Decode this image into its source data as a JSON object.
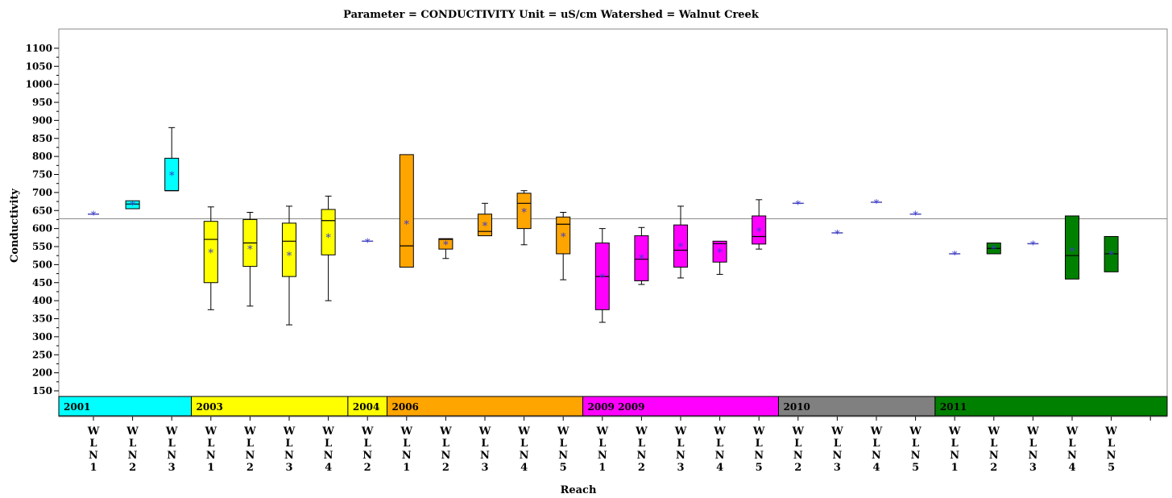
{
  "chart_data": {
    "type": "box",
    "title": "Parameter = CONDUCTIVITY  Unit = uS/cm  Watershed = Walnut  Creek",
    "xlabel": "Reach",
    "ylabel": "Conductivity",
    "ylim": [
      130,
      1130
    ],
    "yticks": [
      150,
      200,
      250,
      300,
      350,
      400,
      450,
      500,
      550,
      600,
      650,
      700,
      750,
      800,
      850,
      900,
      950,
      1000,
      1050,
      1100
    ],
    "reference_line": 627,
    "grid": false,
    "year_groups": [
      {
        "label": "2001",
        "first": 0,
        "last": 2,
        "color": "#00ffff"
      },
      {
        "label": "2003",
        "first": 3,
        "last": 6,
        "color": "#ffff00"
      },
      {
        "label": "2004",
        "first": 7,
        "last": 7,
        "color": "#ffff00"
      },
      {
        "label": "2006",
        "first": 8,
        "last": 12,
        "color": "#ffa500"
      },
      {
        "label": "2009  2009",
        "first": 13,
        "last": 17,
        "color": "#ff00ff"
      },
      {
        "label": "2010",
        "first": 18,
        "last": 21,
        "color": "#808080"
      },
      {
        "label": "2011",
        "first": 22,
        "last": 26,
        "color": "#008000"
      }
    ],
    "boxes": [
      {
        "reach": "WLN1",
        "year": "2001",
        "min": 640,
        "q1": 640,
        "median": 640,
        "q3": 640,
        "max": 640,
        "mean": 640
      },
      {
        "reach": "WLN2",
        "year": "2001",
        "min": 655,
        "q1": 655,
        "median": 668,
        "q3": 677,
        "max": 677,
        "mean": 667
      },
      {
        "reach": "WLN3",
        "year": "2001",
        "min": 705,
        "q1": 705,
        "median": 705,
        "q3": 795,
        "max": 880,
        "mean": 750
      },
      {
        "reach": "WLN1",
        "year": "2003",
        "min": 375,
        "q1": 450,
        "median": 570,
        "q3": 620,
        "max": 660,
        "mean": 535
      },
      {
        "reach": "WLN2",
        "year": "2003",
        "min": 385,
        "q1": 495,
        "median": 560,
        "q3": 625,
        "max": 645,
        "mean": 545
      },
      {
        "reach": "WLN3",
        "year": "2003",
        "min": 333,
        "q1": 467,
        "median": 565,
        "q3": 615,
        "max": 662,
        "mean": 528
      },
      {
        "reach": "WLN4",
        "year": "2003",
        "min": 400,
        "q1": 527,
        "median": 622,
        "q3": 653,
        "max": 690,
        "mean": 578
      },
      {
        "reach": "WLN2",
        "year": "2004",
        "min": 565,
        "q1": 565,
        "median": 565,
        "q3": 565,
        "max": 565,
        "mean": 565
      },
      {
        "reach": "WLN1",
        "year": "2006",
        "min": 493,
        "q1": 493,
        "median": 552,
        "q3": 805,
        "max": 805,
        "mean": 615
      },
      {
        "reach": "WLN2",
        "year": "2006",
        "min": 517,
        "q1": 543,
        "median": 570,
        "q3": 572,
        "max": 572,
        "mean": 558
      },
      {
        "reach": "WLN3",
        "year": "2006",
        "min": 580,
        "q1": 580,
        "median": 592,
        "q3": 640,
        "max": 670,
        "mean": 610
      },
      {
        "reach": "WLN4",
        "year": "2006",
        "min": 555,
        "q1": 600,
        "median": 670,
        "q3": 698,
        "max": 705,
        "mean": 648
      },
      {
        "reach": "WLN5",
        "year": "2006",
        "min": 458,
        "q1": 530,
        "median": 612,
        "q3": 632,
        "max": 645,
        "mean": 580
      },
      {
        "reach": "WLN1",
        "year": "2009",
        "min": 340,
        "q1": 375,
        "median": 467,
        "q3": 560,
        "max": 600,
        "mean": 467
      },
      {
        "reach": "WLN2",
        "year": "2009",
        "min": 445,
        "q1": 455,
        "median": 515,
        "q3": 580,
        "max": 603,
        "mean": 520
      },
      {
        "reach": "WLN3",
        "year": "2009",
        "min": 463,
        "q1": 493,
        "median": 540,
        "q3": 610,
        "max": 662,
        "mean": 552
      },
      {
        "reach": "WLN4",
        "year": "2009",
        "min": 473,
        "q1": 507,
        "median": 558,
        "q3": 565,
        "max": 565,
        "mean": 537
      },
      {
        "reach": "WLN5",
        "year": "2009",
        "min": 543,
        "q1": 557,
        "median": 578,
        "q3": 635,
        "max": 680,
        "mean": 595
      },
      {
        "reach": "WLN2",
        "year": "2010",
        "min": 670,
        "q1": 670,
        "median": 670,
        "q3": 670,
        "max": 670,
        "mean": 670
      },
      {
        "reach": "WLN3",
        "year": "2010",
        "min": 588,
        "q1": 588,
        "median": 588,
        "q3": 588,
        "max": 588,
        "mean": 588
      },
      {
        "reach": "WLN4",
        "year": "2010",
        "min": 673,
        "q1": 673,
        "median": 673,
        "q3": 673,
        "max": 673,
        "mean": 673
      },
      {
        "reach": "WLN5",
        "year": "2010",
        "min": 640,
        "q1": 640,
        "median": 640,
        "q3": 640,
        "max": 640,
        "mean": 640
      },
      {
        "reach": "WLN1",
        "year": "2011",
        "min": 530,
        "q1": 530,
        "median": 530,
        "q3": 530,
        "max": 530,
        "mean": 530
      },
      {
        "reach": "WLN2",
        "year": "2011",
        "min": 530,
        "q1": 530,
        "median": 545,
        "q3": 560,
        "max": 560,
        "mean": 545
      },
      {
        "reach": "WLN3",
        "year": "2011",
        "min": 558,
        "q1": 558,
        "median": 558,
        "q3": 558,
        "max": 558,
        "mean": 558
      },
      {
        "reach": "WLN4",
        "year": "2011",
        "min": 460,
        "q1": 460,
        "median": 525,
        "q3": 635,
        "max": 635,
        "mean": 540
      },
      {
        "reach": "WLN5",
        "year": "2011",
        "min": 480,
        "q1": 480,
        "median": 530,
        "q3": 578,
        "max": 578,
        "mean": 530
      }
    ]
  }
}
